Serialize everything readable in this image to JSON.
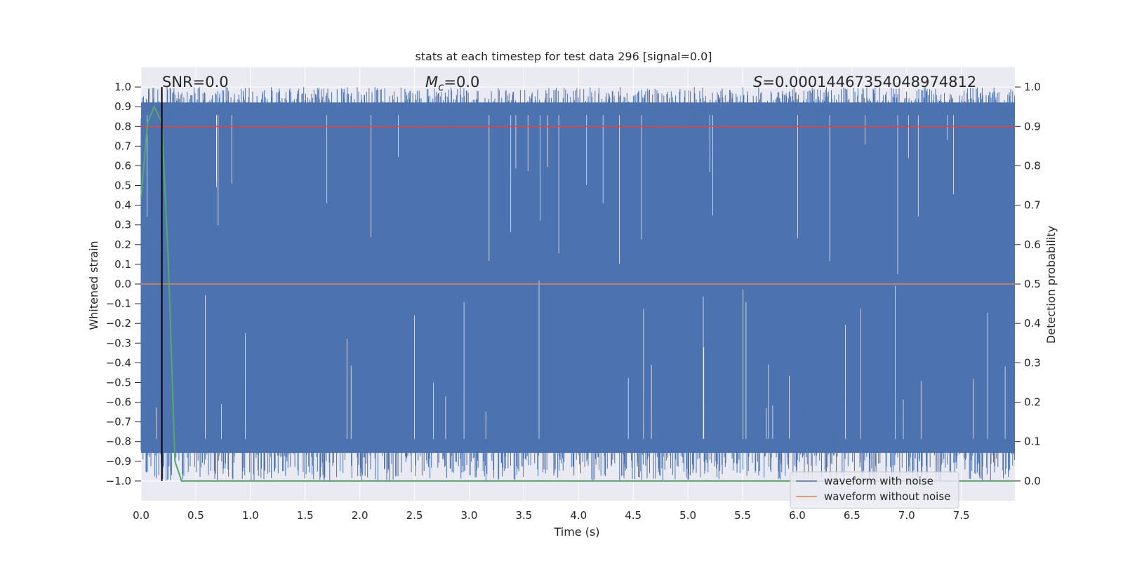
{
  "chart_data": {
    "type": "line",
    "title": "stats at each timestep for test data 296 [signal=0.0]",
    "xlabel": "Time (s)",
    "ylabel": "Whitened strain",
    "ylabel_right": "Detection probability",
    "xlim": [
      0.0,
      7.99
    ],
    "ylim": [
      -1.1,
      1.1
    ],
    "ylim_right": [
      -0.05,
      1.05
    ],
    "x_ticks": [
      "0.0",
      "0.5",
      "1.0",
      "1.5",
      "2.0",
      "2.5",
      "3.0",
      "3.5",
      "4.0",
      "4.5",
      "5.0",
      "5.5",
      "6.0",
      "6.5",
      "7.0",
      "7.5"
    ],
    "y_ticks": [
      "1.0",
      "0.9",
      "0.8",
      "0.7",
      "0.6",
      "0.5",
      "0.4",
      "0.3",
      "0.2",
      "0.1",
      "0.0",
      "−0.1",
      "−0.2",
      "−0.3",
      "−0.4",
      "−0.5",
      "−0.6",
      "−0.7",
      "−0.8",
      "−0.9",
      "−1.0"
    ],
    "y_ticks_right": [
      "1.0",
      "0.9",
      "0.8",
      "0.7",
      "0.6",
      "0.5",
      "0.4",
      "0.3",
      "0.2",
      "0.1",
      "0.0"
    ],
    "grid": true,
    "legend_position": "bottom-right",
    "colors": {
      "noise": "#4c72b0",
      "clean": "#dd8452",
      "probability": "#55a868",
      "threshold": "#c44e52",
      "marker": "#000000",
      "background": "#eaeaf2",
      "grid": "#ffffff"
    },
    "annotations": {
      "snr": "SNR=0.0",
      "mc_symbol": "M",
      "mc_sub": "c",
      "mc_value": "=0.0",
      "s_symbol": "S",
      "s_value": "=0.00014467354048974812"
    },
    "series": [
      {
        "name": "waveform with noise",
        "description": "dense noise series spanning approximately -1.0 to 1.0 across full time range",
        "range": [
          -1.0,
          1.0
        ]
      },
      {
        "name": "waveform without noise",
        "x": [
          0.0,
          7.99
        ],
        "y": [
          0.0,
          0.0
        ]
      },
      {
        "axis": "right",
        "x": [
          0.0,
          0.06,
          0.12,
          0.19,
          0.25,
          0.31,
          0.37,
          7.99
        ],
        "y": [
          0.72,
          0.91,
          0.95,
          0.91,
          0.55,
          0.05,
          0.0,
          0.0
        ]
      },
      {
        "axis": "right",
        "x": [
          0.0,
          7.99
        ],
        "y": [
          0.9,
          0.9
        ]
      }
    ],
    "marker_x": 0.19
  }
}
